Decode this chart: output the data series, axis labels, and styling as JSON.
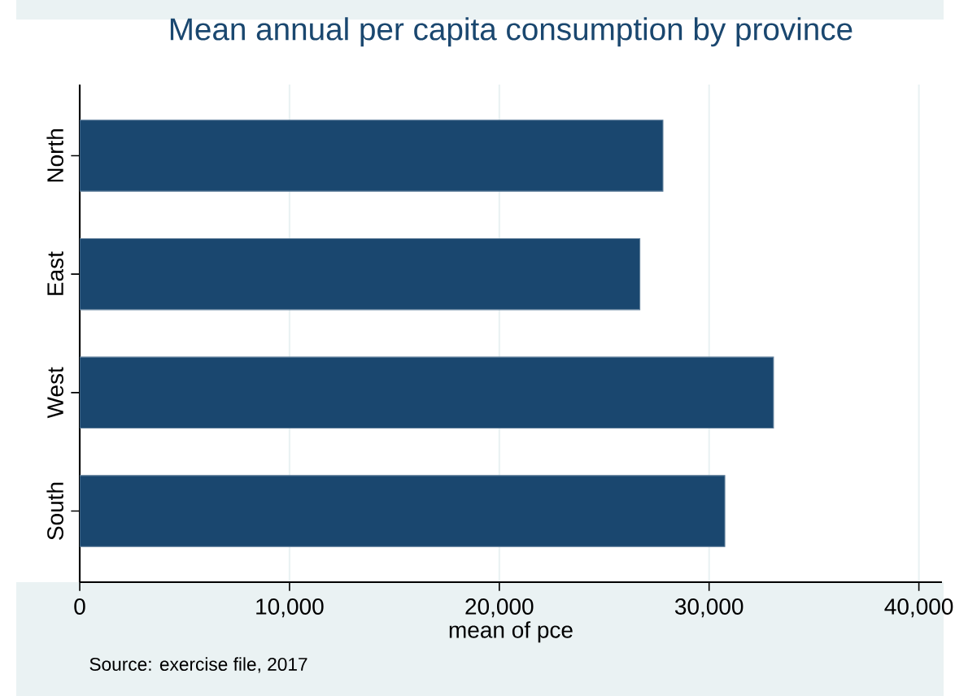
{
  "chart_data": {
    "type": "bar",
    "orientation": "horizontal",
    "title": "Mean annual per capita consumption by province",
    "xlabel": "mean of pce",
    "categories": [
      "North",
      "East",
      "West",
      "South"
    ],
    "values": [
      27800,
      26700,
      33070,
      30750
    ],
    "color": "#1a476f",
    "xlim": [
      0,
      41100
    ],
    "xticks": [
      0,
      {
        "value": 10000,
        "label": "10,000"
      },
      {
        "value": 20000,
        "label": "20,000"
      },
      {
        "value": 30000,
        "label": "30,000"
      },
      {
        "value": 40000,
        "label": "40,000"
      }
    ],
    "grid": "x",
    "annotations": [
      "Source: exercise file, 2017"
    ]
  }
}
